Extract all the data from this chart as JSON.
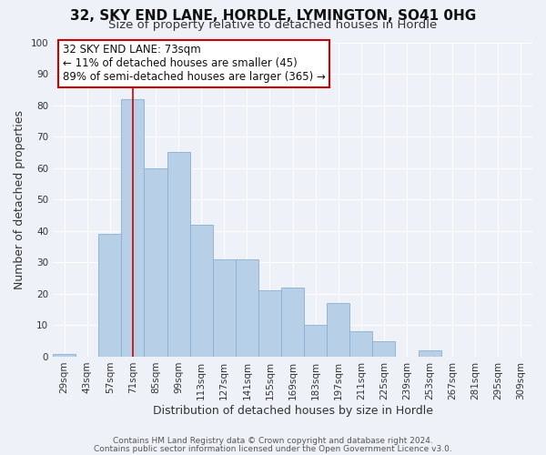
{
  "title": "32, SKY END LANE, HORDLE, LYMINGTON, SO41 0HG",
  "subtitle": "Size of property relative to detached houses in Hordle",
  "xlabel": "Distribution of detached houses by size in Hordle",
  "ylabel": "Number of detached properties",
  "bar_color": "#b8cfe8",
  "bar_edge_color": "#8aafd0",
  "background_color": "#eef2f8",
  "categories": [
    "29sqm",
    "43sqm",
    "57sqm",
    "71sqm",
    "85sqm",
    "99sqm",
    "113sqm",
    "127sqm",
    "141sqm",
    "155sqm",
    "169sqm",
    "183sqm",
    "197sqm",
    "211sqm",
    "225sqm",
    "239sqm",
    "253sqm",
    "267sqm",
    "281sqm",
    "295sqm",
    "309sqm"
  ],
  "values": [
    1,
    0,
    39,
    82,
    60,
    65,
    42,
    31,
    31,
    21,
    22,
    10,
    17,
    8,
    5,
    0,
    2,
    0,
    0,
    0,
    0
  ],
  "ylim": [
    0,
    100
  ],
  "yticks": [
    0,
    10,
    20,
    30,
    40,
    50,
    60,
    70,
    80,
    90,
    100
  ],
  "annotation_text": "32 SKY END LANE: 73sqm\n← 11% of detached houses are smaller (45)\n89% of semi-detached houses are larger (365) →",
  "subject_bar_index": 3,
  "subject_line_color": "#cc0000",
  "grid_color": "#d8e0ee",
  "footer_line1": "Contains HM Land Registry data © Crown copyright and database right 2024.",
  "footer_line2": "Contains public sector information licensed under the Open Government Licence v3.0.",
  "title_fontsize": 11,
  "subtitle_fontsize": 9.5,
  "axis_label_fontsize": 9,
  "tick_fontsize": 7.5,
  "annotation_fontsize": 8.5,
  "footer_fontsize": 6.5
}
